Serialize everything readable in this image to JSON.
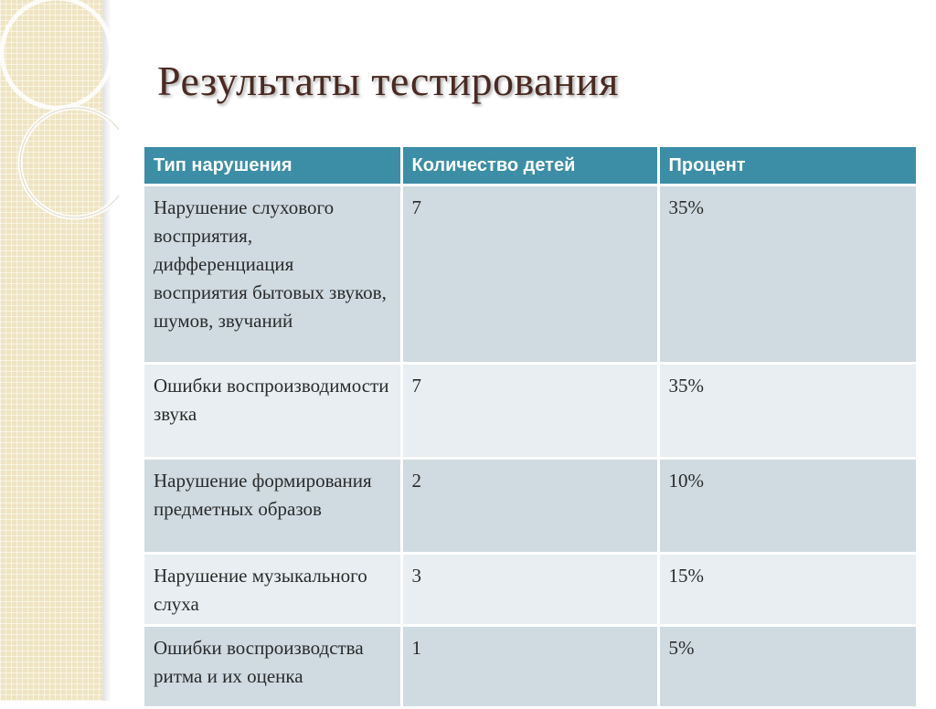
{
  "title": "Результаты тестирования",
  "table": {
    "headers": [
      "Тип нарушения",
      "Количество детей",
      "Процент"
    ],
    "rows": [
      {
        "type": "Нарушение слухового восприятия, дифференциация восприятия бытовых звуков, шумов, звучаний",
        "count": "7",
        "percent": "35%"
      },
      {
        "type": "Ошибки воспроизводимости звука",
        "count": "7",
        "percent": "35%"
      },
      {
        "type": "Нарушение формирования предметных образов",
        "count": "2",
        "percent": "10%"
      },
      {
        "type": "Нарушение музыкального слуха",
        "count": "3",
        "percent": "15%"
      },
      {
        "type": "Ошибки воспроизводства ритма и их оценка",
        "count": "1",
        "percent": "5%"
      }
    ]
  }
}
